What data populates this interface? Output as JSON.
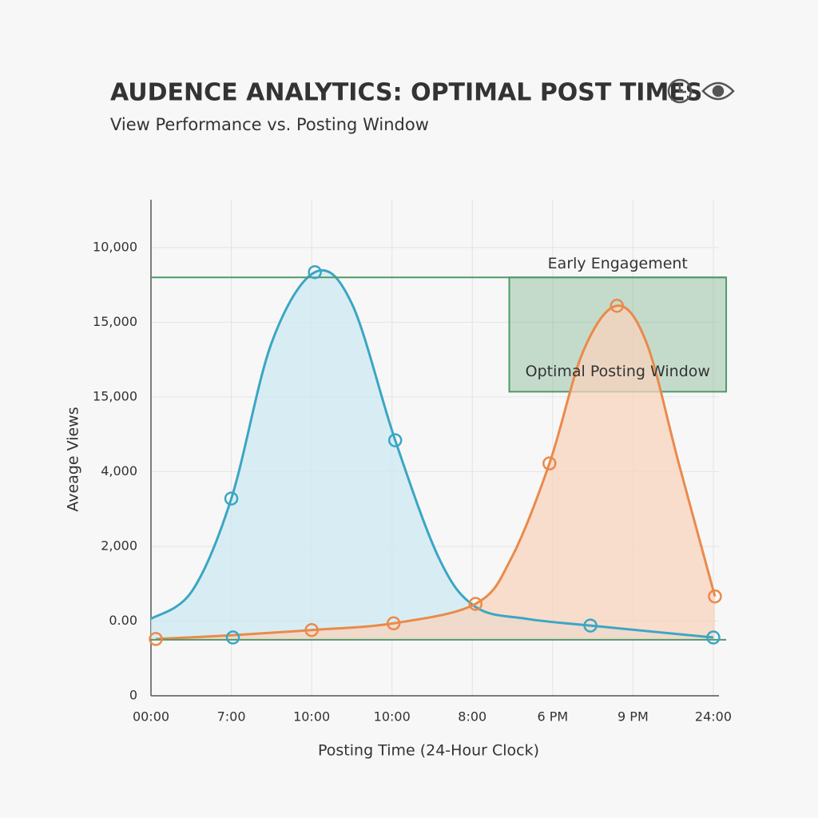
{
  "chart_data": {
    "type": "line",
    "title": "AUDENCE ANALYTICS: OPTIMAL POST TIMES",
    "subtitle": "View Performance vs. Posting Window",
    "x_label": "Posting Time (24-Hour Clock)",
    "y_label": "Aveage Views",
    "xlim": [
      0,
      7.07
    ],
    "ylim": [
      0,
      6.64
    ],
    "xticks": [
      {
        "value": 0,
        "label": "00:00"
      },
      {
        "value": 1,
        "label": "7:00"
      },
      {
        "value": 2,
        "label": "10:00"
      },
      {
        "value": 3,
        "label": "10:00"
      },
      {
        "value": 4,
        "label": "8:00"
      },
      {
        "value": 5,
        "label": "6 PM"
      },
      {
        "value": 6,
        "label": "9 PM"
      },
      {
        "value": 7,
        "label": "24:00"
      }
    ],
    "yticks": [
      {
        "value": 0,
        "label": "0"
      },
      {
        "value": 1,
        "label": "0.00"
      },
      {
        "value": 2,
        "label": "2,000"
      },
      {
        "value": 3,
        "label": "4,000"
      },
      {
        "value": 4,
        "label": "15,000"
      },
      {
        "value": 5,
        "label": "15,000"
      },
      {
        "value": 6,
        "label": "10,000"
      }
    ],
    "grid": true,
    "series": [
      {
        "color": "#3aa6c4",
        "fill": "#cde9f1",
        "x": [
          0,
          0.51,
          1.0,
          1.5,
          2.04,
          2.5,
          3.04,
          3.59,
          4.04,
          4.68,
          5.47,
          7.0
        ],
        "values": [
          1.03,
          1.4,
          2.64,
          4.72,
          5.67,
          5.25,
          3.42,
          1.83,
          1.19,
          1.03,
          0.94,
          0.78
        ],
        "marker_x": [
          1.02,
          1.0,
          2.04,
          3.04,
          5.47,
          7.0
        ],
        "marker_values": [
          0.78,
          2.64,
          5.67,
          3.42,
          0.94,
          0.78
        ]
      },
      {
        "color": "#ea8a4a",
        "fill": "#f8d3bd",
        "x": [
          0.06,
          1.0,
          2.0,
          3.02,
          4.04,
          4.48,
          4.96,
          5.38,
          5.8,
          6.17,
          6.57,
          7.02
        ],
        "values": [
          0.76,
          0.81,
          0.88,
          0.97,
          1.23,
          1.83,
          3.11,
          4.61,
          5.22,
          4.72,
          3.11,
          1.33
        ],
        "marker_x": [
          0.06,
          2.0,
          3.02,
          4.04,
          4.96,
          5.8,
          7.02
        ],
        "marker_values": [
          0.76,
          0.88,
          0.97,
          1.23,
          3.11,
          5.22,
          1.33
        ]
      }
    ],
    "reference_lines": [
      {
        "color": "#4f9a6a",
        "value": 5.6
      },
      {
        "color": "#4f9a6a",
        "value": 0.75
      }
    ],
    "highlight": {
      "color": "#4f9a6a",
      "x": [
        4.46,
        7.16
      ],
      "y": [
        4.07,
        5.6
      ],
      "label_top": "Early Engagement",
      "label_inside": "Optimal Posting Window"
    }
  }
}
